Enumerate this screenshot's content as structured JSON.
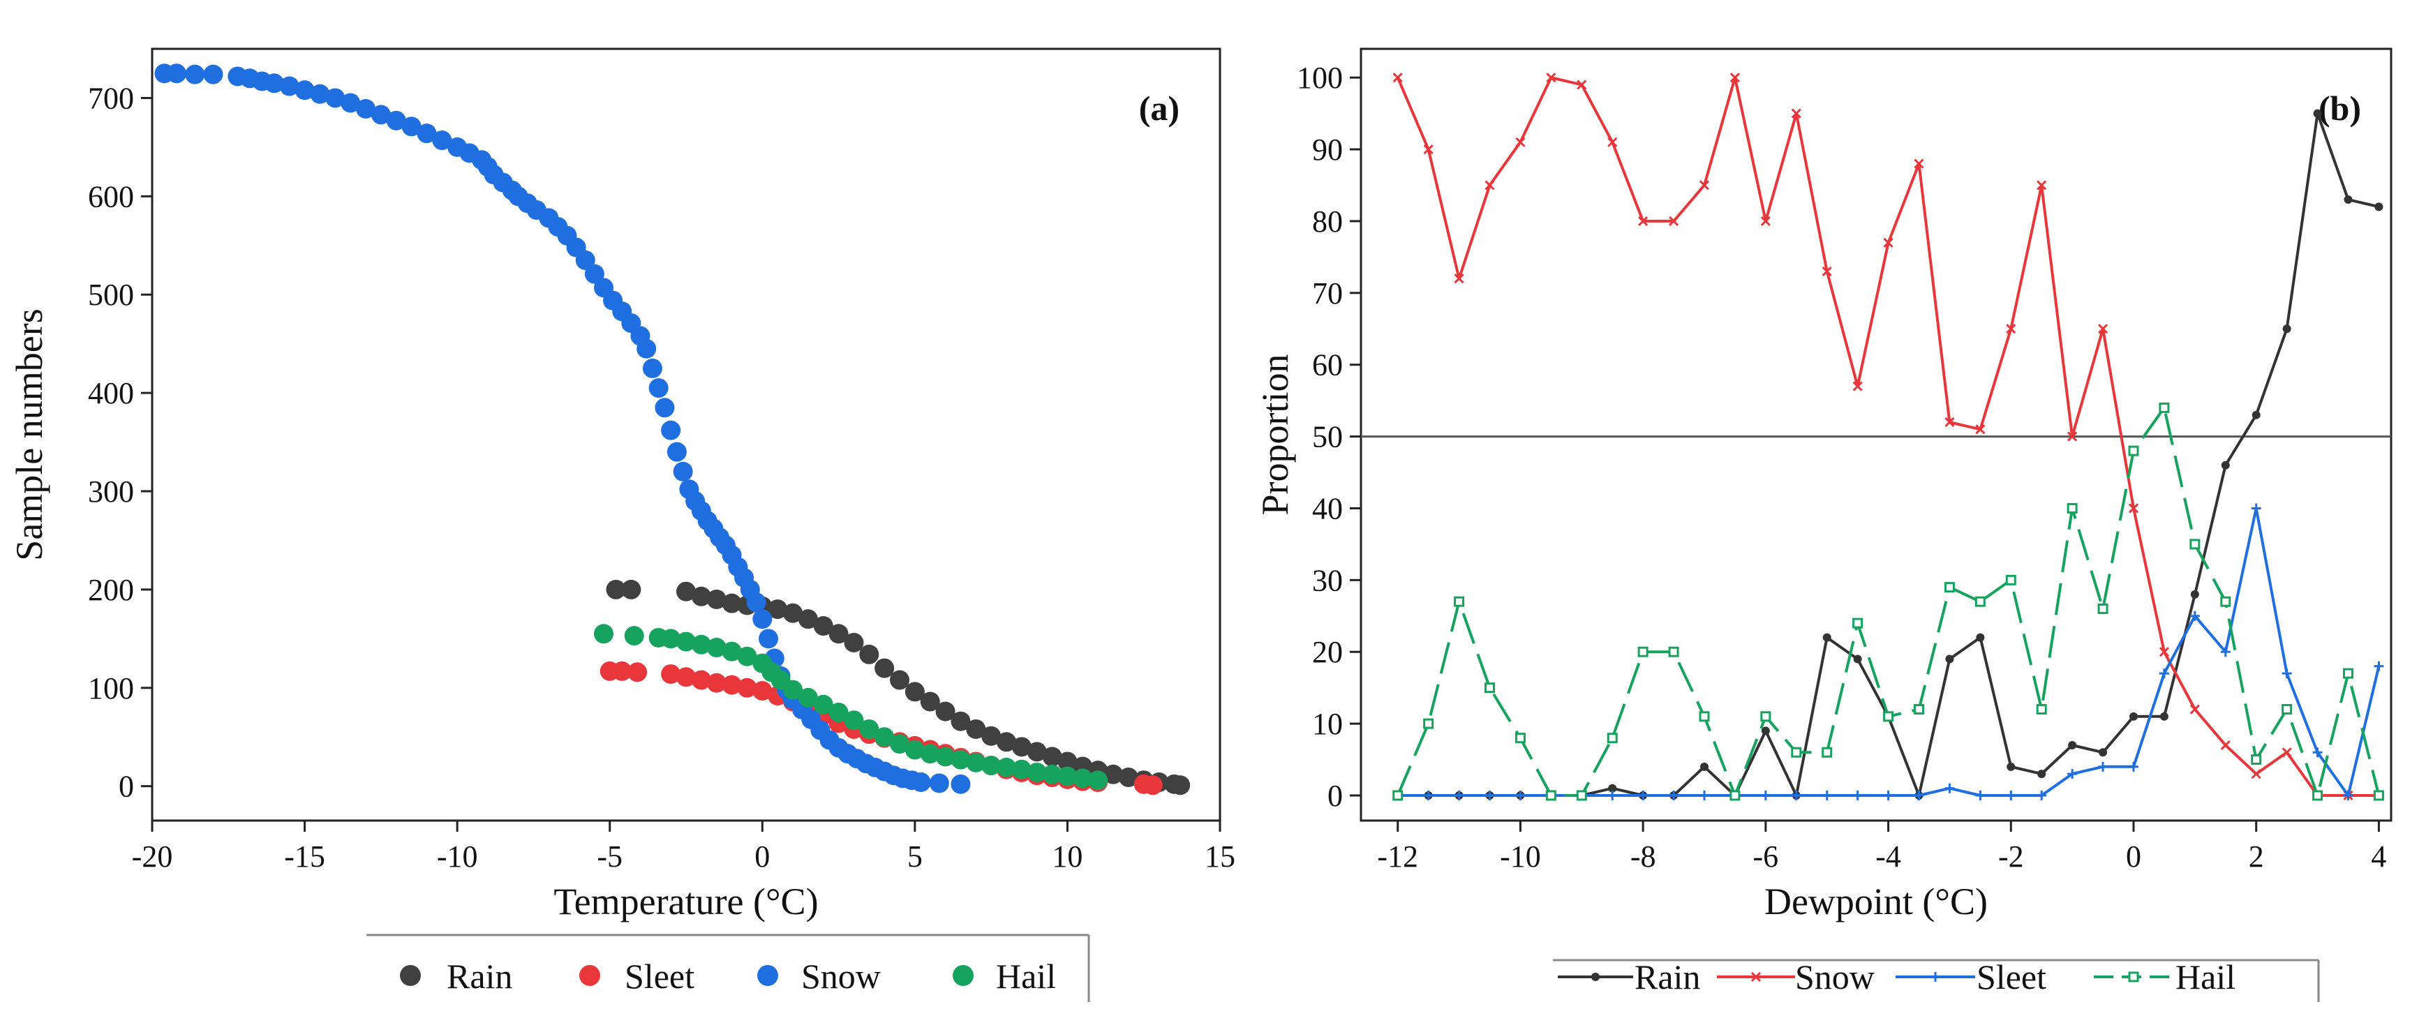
{
  "chart_data": [
    {
      "type": "scatter",
      "panel_label": "(a)",
      "xlabel": "Temperature (°C)",
      "ylabel": "Sample numbers",
      "xlim": [
        -20,
        15
      ],
      "ylim": [
        -35,
        750
      ],
      "xticks": [
        -20,
        -15,
        -10,
        -5,
        0,
        5,
        10,
        15
      ],
      "yticks": [
        0,
        100,
        200,
        300,
        400,
        500,
        600,
        700
      ],
      "legend": [
        "Rain",
        "Sleet",
        "Snow",
        "Hail"
      ],
      "series": [
        {
          "name": "Rain",
          "color": "#404040",
          "points": [
            [
              -4.8,
              200
            ],
            [
              -4.3,
              200
            ],
            [
              -2.5,
              198
            ],
            [
              -2,
              193
            ],
            [
              -1.5,
              190
            ],
            [
              -1,
              186
            ],
            [
              -0.5,
              184
            ],
            [
              0,
              183
            ],
            [
              0.5,
              180
            ],
            [
              1,
              176
            ],
            [
              1.5,
              170
            ],
            [
              2,
              163
            ],
            [
              2.5,
              155
            ],
            [
              3,
              146
            ],
            [
              3.5,
              134
            ],
            [
              4,
              120
            ],
            [
              4.5,
              108
            ],
            [
              5,
              96
            ],
            [
              5.5,
              86
            ],
            [
              6,
              76
            ],
            [
              6.5,
              66
            ],
            [
              7,
              58
            ],
            [
              7.5,
              51
            ],
            [
              8,
              45
            ],
            [
              8.5,
              40
            ],
            [
              9,
              35
            ],
            [
              9.5,
              30
            ],
            [
              10,
              25
            ],
            [
              10.5,
              20
            ],
            [
              11,
              16
            ],
            [
              11.5,
              12
            ],
            [
              12,
              9
            ],
            [
              12.5,
              6
            ],
            [
              13,
              4
            ],
            [
              13.5,
              2
            ],
            [
              13.7,
              1
            ]
          ]
        },
        {
          "name": "Sleet",
          "color": "#e8363a",
          "points": [
            [
              -5,
              117
            ],
            [
              -4.6,
              117
            ],
            [
              -4.1,
              116
            ],
            [
              -3,
              114
            ],
            [
              -2.5,
              111
            ],
            [
              -2,
              108
            ],
            [
              -1.5,
              105
            ],
            [
              -1,
              103
            ],
            [
              -0.5,
              100
            ],
            [
              0,
              97
            ],
            [
              0.5,
              92
            ],
            [
              1,
              86
            ],
            [
              1.5,
              80
            ],
            [
              2,
              72
            ],
            [
              2.5,
              64
            ],
            [
              3,
              58
            ],
            [
              3.5,
              53
            ],
            [
              4,
              49
            ],
            [
              4.5,
              45
            ],
            [
              5,
              41
            ],
            [
              5.5,
              37
            ],
            [
              6,
              33
            ],
            [
              6.5,
              29
            ],
            [
              7,
              25
            ],
            [
              7.5,
              21
            ],
            [
              8,
              17
            ],
            [
              8.5,
              14
            ],
            [
              9,
              11
            ],
            [
              9.5,
              9
            ],
            [
              10,
              7
            ],
            [
              10.5,
              5
            ],
            [
              11,
              4
            ],
            [
              12.5,
              2
            ],
            [
              12.8,
              1
            ]
          ]
        },
        {
          "name": "Snow",
          "color": "#1f6fe0",
          "points": [
            [
              -19.6,
              725
            ],
            [
              -19.2,
              725
            ],
            [
              -18.6,
              724
            ],
            [
              -18,
              724
            ],
            [
              -17.2,
              722
            ],
            [
              -16.8,
              720
            ],
            [
              -16.4,
              717
            ],
            [
              -16,
              715
            ],
            [
              -15.5,
              712
            ],
            [
              -15,
              708
            ],
            [
              -14.5,
              704
            ],
            [
              -14,
              700
            ],
            [
              -13.5,
              695
            ],
            [
              -13,
              689
            ],
            [
              -12.5,
              683
            ],
            [
              -12,
              677
            ],
            [
              -11.5,
              671
            ],
            [
              -11,
              664
            ],
            [
              -10.5,
              657
            ],
            [
              -10,
              650
            ],
            [
              -9.6,
              644
            ],
            [
              -9.2,
              637
            ],
            [
              -9,
              630
            ],
            [
              -8.8,
              622
            ],
            [
              -8.5,
              614
            ],
            [
              -8.2,
              606
            ],
            [
              -8,
              600
            ],
            [
              -7.7,
              593
            ],
            [
              -7.4,
              586
            ],
            [
              -7,
              578
            ],
            [
              -6.7,
              569
            ],
            [
              -6.4,
              560
            ],
            [
              -6.1,
              548
            ],
            [
              -5.8,
              535
            ],
            [
              -5.5,
              521
            ],
            [
              -5.2,
              507
            ],
            [
              -4.9,
              494
            ],
            [
              -4.6,
              483
            ],
            [
              -4.3,
              471
            ],
            [
              -4,
              458
            ],
            [
              -3.8,
              445
            ],
            [
              -3.6,
              425
            ],
            [
              -3.4,
              405
            ],
            [
              -3.2,
              385
            ],
            [
              -3,
              362
            ],
            [
              -2.8,
              340
            ],
            [
              -2.6,
              320
            ],
            [
              -2.4,
              302
            ],
            [
              -2.2,
              290
            ],
            [
              -2,
              280
            ],
            [
              -1.8,
              270
            ],
            [
              -1.6,
              262
            ],
            [
              -1.4,
              253
            ],
            [
              -1.2,
              245
            ],
            [
              -1,
              235
            ],
            [
              -0.8,
              223
            ],
            [
              -0.6,
              212
            ],
            [
              -0.4,
              200
            ],
            [
              -0.2,
              187
            ],
            [
              0,
              170
            ],
            [
              0.2,
              150
            ],
            [
              0.4,
              130
            ],
            [
              0.6,
              112
            ],
            [
              0.8,
              98
            ],
            [
              1,
              88
            ],
            [
              1.3,
              78
            ],
            [
              1.6,
              68
            ],
            [
              1.9,
              57
            ],
            [
              2.2,
              47
            ],
            [
              2.5,
              39
            ],
            [
              2.8,
              33
            ],
            [
              3.1,
              28
            ],
            [
              3.4,
              23
            ],
            [
              3.7,
              19
            ],
            [
              4,
              15
            ],
            [
              4.3,
              11
            ],
            [
              4.6,
              8
            ],
            [
              4.9,
              6
            ],
            [
              5.2,
              4
            ],
            [
              5.8,
              3
            ],
            [
              6.5,
              2
            ]
          ]
        },
        {
          "name": "Hail",
          "color": "#16a35e",
          "points": [
            [
              -5.2,
              155
            ],
            [
              -4.2,
              153
            ],
            [
              -3.4,
              151
            ],
            [
              -3,
              150
            ],
            [
              -2.5,
              147
            ],
            [
              -2,
              144
            ],
            [
              -1.5,
              141
            ],
            [
              -1,
              137
            ],
            [
              -0.5,
              132
            ],
            [
              0,
              125
            ],
            [
              0.3,
              116
            ],
            [
              0.6,
              108
            ],
            [
              1,
              98
            ],
            [
              1.5,
              90
            ],
            [
              2,
              83
            ],
            [
              2.5,
              75
            ],
            [
              3,
              67
            ],
            [
              3.5,
              58
            ],
            [
              4,
              50
            ],
            [
              4.5,
              43
            ],
            [
              5,
              37
            ],
            [
              5.5,
              33
            ],
            [
              6,
              30
            ],
            [
              6.5,
              27
            ],
            [
              7,
              24
            ],
            [
              7.5,
              21
            ],
            [
              8,
              19
            ],
            [
              8.5,
              17
            ],
            [
              9,
              14
            ],
            [
              9.5,
              12
            ],
            [
              10,
              10
            ],
            [
              10.5,
              8
            ],
            [
              11,
              6
            ]
          ]
        }
      ]
    },
    {
      "type": "line",
      "panel_label": "(b)",
      "xlabel": "Dewpoint (°C)",
      "ylabel": "Proportion",
      "xlim": [
        -12.6,
        4.2
      ],
      "ylim": [
        -3.5,
        104
      ],
      "xticks": [
        -12,
        -10,
        -8,
        -6,
        -4,
        -2,
        0,
        2,
        4
      ],
      "yticks": [
        0,
        10,
        20,
        30,
        40,
        50,
        60,
        70,
        80,
        90,
        100
      ],
      "reference_line": 50,
      "legend": [
        "Rain",
        "Snow",
        "Sleet",
        "Hail"
      ],
      "x": [
        -12,
        -11.5,
        -11,
        -10.5,
        -10,
        -9.5,
        -9,
        -8.5,
        -8,
        -7.5,
        -7,
        -6.5,
        -6,
        -5.5,
        -5,
        -4.5,
        -4,
        -3.5,
        -3,
        -2.5,
        -2,
        -1.5,
        -1,
        -0.5,
        0,
        0.5,
        1,
        1.5,
        2,
        2.5,
        3,
        3.5,
        4
      ],
      "series": [
        {
          "name": "Rain",
          "color": "#333333",
          "marker": "dot",
          "values": [
            0,
            0,
            0,
            0,
            0,
            0,
            0,
            1,
            0,
            0,
            4,
            0,
            9,
            0,
            22,
            19,
            11,
            0,
            19,
            22,
            4,
            3,
            7,
            6,
            11,
            11,
            28,
            46,
            53,
            65,
            95,
            83,
            82
          ]
        },
        {
          "name": "Snow",
          "color": "#e8363a",
          "marker": "x",
          "values": [
            100,
            90,
            72,
            85,
            91,
            100,
            99,
            91,
            80,
            80,
            85,
            100,
            80,
            95,
            73,
            57,
            77,
            88,
            52,
            51,
            65,
            85,
            50,
            65,
            40,
            20,
            12,
            7,
            3,
            6,
            0,
            0,
            0
          ]
        },
        {
          "name": "Sleet",
          "color": "#1f6fe0",
          "marker": "plus",
          "values": [
            0,
            0,
            0,
            0,
            0,
            0,
            0,
            0,
            0,
            0,
            0,
            0,
            0,
            0,
            0,
            0,
            0,
            0,
            1,
            0,
            0,
            0,
            3,
            4,
            4,
            17,
            25,
            20,
            40,
            17,
            6,
            0,
            18
          ]
        },
        {
          "name": "Hail",
          "color": "#16a35e",
          "marker": "square",
          "dashed": true,
          "values": [
            0,
            10,
            27,
            15,
            8,
            0,
            0,
            8,
            20,
            20,
            11,
            0,
            11,
            6,
            6,
            24,
            11,
            12,
            29,
            27,
            30,
            12,
            40,
            26,
            48,
            54,
            35,
            27,
            5,
            12,
            0,
            17,
            0
          ]
        }
      ]
    }
  ]
}
